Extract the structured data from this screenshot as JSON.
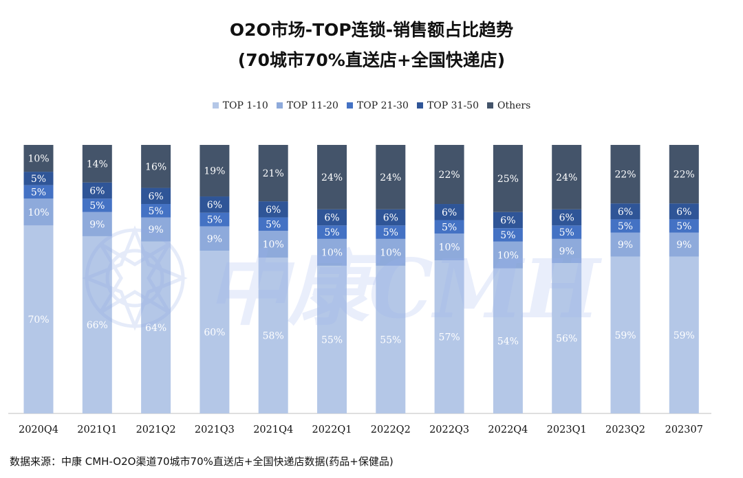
{
  "title_line1": "O2O市场-TOP连锁-销售额占比趋势",
  "title_line2": "(70城市70%直送店+全国快递店)",
  "source_text": "数据来源：中康 CMH-O2O渠道70城市70%直送店+全国快递店数据(药品+保健品)",
  "watermark_text": "中康CMH",
  "colors": {
    "TOP 1-10": "#b4c7e7",
    "TOP 11-20": "#8eaadb",
    "TOP 21-30": "#4472c4",
    "TOP 31-50": "#2f5597",
    "Others": "#44546a"
  },
  "chart_data": {
    "type": "bar",
    "stacked": true,
    "categories": [
      "2020Q4",
      "2021Q1",
      "2021Q2",
      "2021Q3",
      "2021Q4",
      "2022Q1",
      "2022Q2",
      "2022Q3",
      "2022Q4",
      "2023Q1",
      "2023Q2",
      "202307"
    ],
    "series": [
      {
        "name": "TOP 1-10",
        "values": [
          70,
          66,
          64,
          60,
          58,
          55,
          55,
          57,
          54,
          56,
          59,
          59
        ]
      },
      {
        "name": "TOP 11-20",
        "values": [
          10,
          9,
          9,
          9,
          10,
          10,
          10,
          10,
          10,
          9,
          9,
          9
        ]
      },
      {
        "name": "TOP 21-30",
        "values": [
          5,
          5,
          5,
          5,
          5,
          5,
          5,
          5,
          5,
          5,
          5,
          5
        ]
      },
      {
        "name": "TOP 31-50",
        "values": [
          5,
          6,
          6,
          6,
          6,
          6,
          6,
          6,
          6,
          6,
          6,
          6
        ]
      },
      {
        "name": "Others",
        "values": [
          10,
          14,
          16,
          19,
          21,
          24,
          24,
          22,
          25,
          24,
          22,
          22
        ]
      }
    ],
    "value_suffix": "%",
    "ylim": [
      0,
      100
    ],
    "legend_position": "top",
    "grid": false
  }
}
